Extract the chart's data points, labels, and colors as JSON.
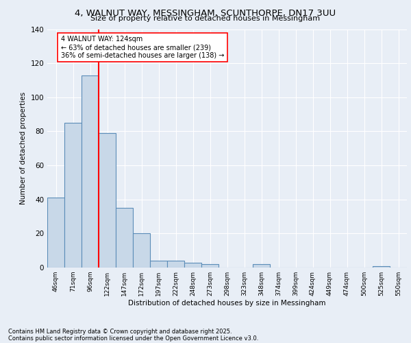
{
  "title1": "4, WALNUT WAY, MESSINGHAM, SCUNTHORPE, DN17 3UU",
  "title2": "Size of property relative to detached houses in Messingham",
  "xlabel": "Distribution of detached houses by size in Messingham",
  "ylabel": "Number of detached properties",
  "categories": [
    "46sqm",
    "71sqm",
    "96sqm",
    "122sqm",
    "147sqm",
    "172sqm",
    "197sqm",
    "222sqm",
    "248sqm",
    "273sqm",
    "298sqm",
    "323sqm",
    "348sqm",
    "374sqm",
    "399sqm",
    "424sqm",
    "449sqm",
    "474sqm",
    "500sqm",
    "525sqm",
    "550sqm"
  ],
  "values": [
    41,
    85,
    113,
    79,
    35,
    20,
    4,
    4,
    3,
    2,
    0,
    0,
    2,
    0,
    0,
    0,
    0,
    0,
    0,
    1,
    0
  ],
  "bar_color": "#c8d8e8",
  "bar_edge_color": "#5b8db8",
  "red_line_index": 3,
  "annotation_title": "4 WALNUT WAY: 124sqm",
  "annotation_line1": "← 63% of detached houses are smaller (239)",
  "annotation_line2": "36% of semi-detached houses are larger (138) →",
  "ylim": [
    0,
    140
  ],
  "yticks": [
    0,
    20,
    40,
    60,
    80,
    100,
    120,
    140
  ],
  "bg_color": "#e8eef6",
  "plot_bg_color": "#e8eef6",
  "footer1": "Contains HM Land Registry data © Crown copyright and database right 2025.",
  "footer2": "Contains public sector information licensed under the Open Government Licence v3.0."
}
